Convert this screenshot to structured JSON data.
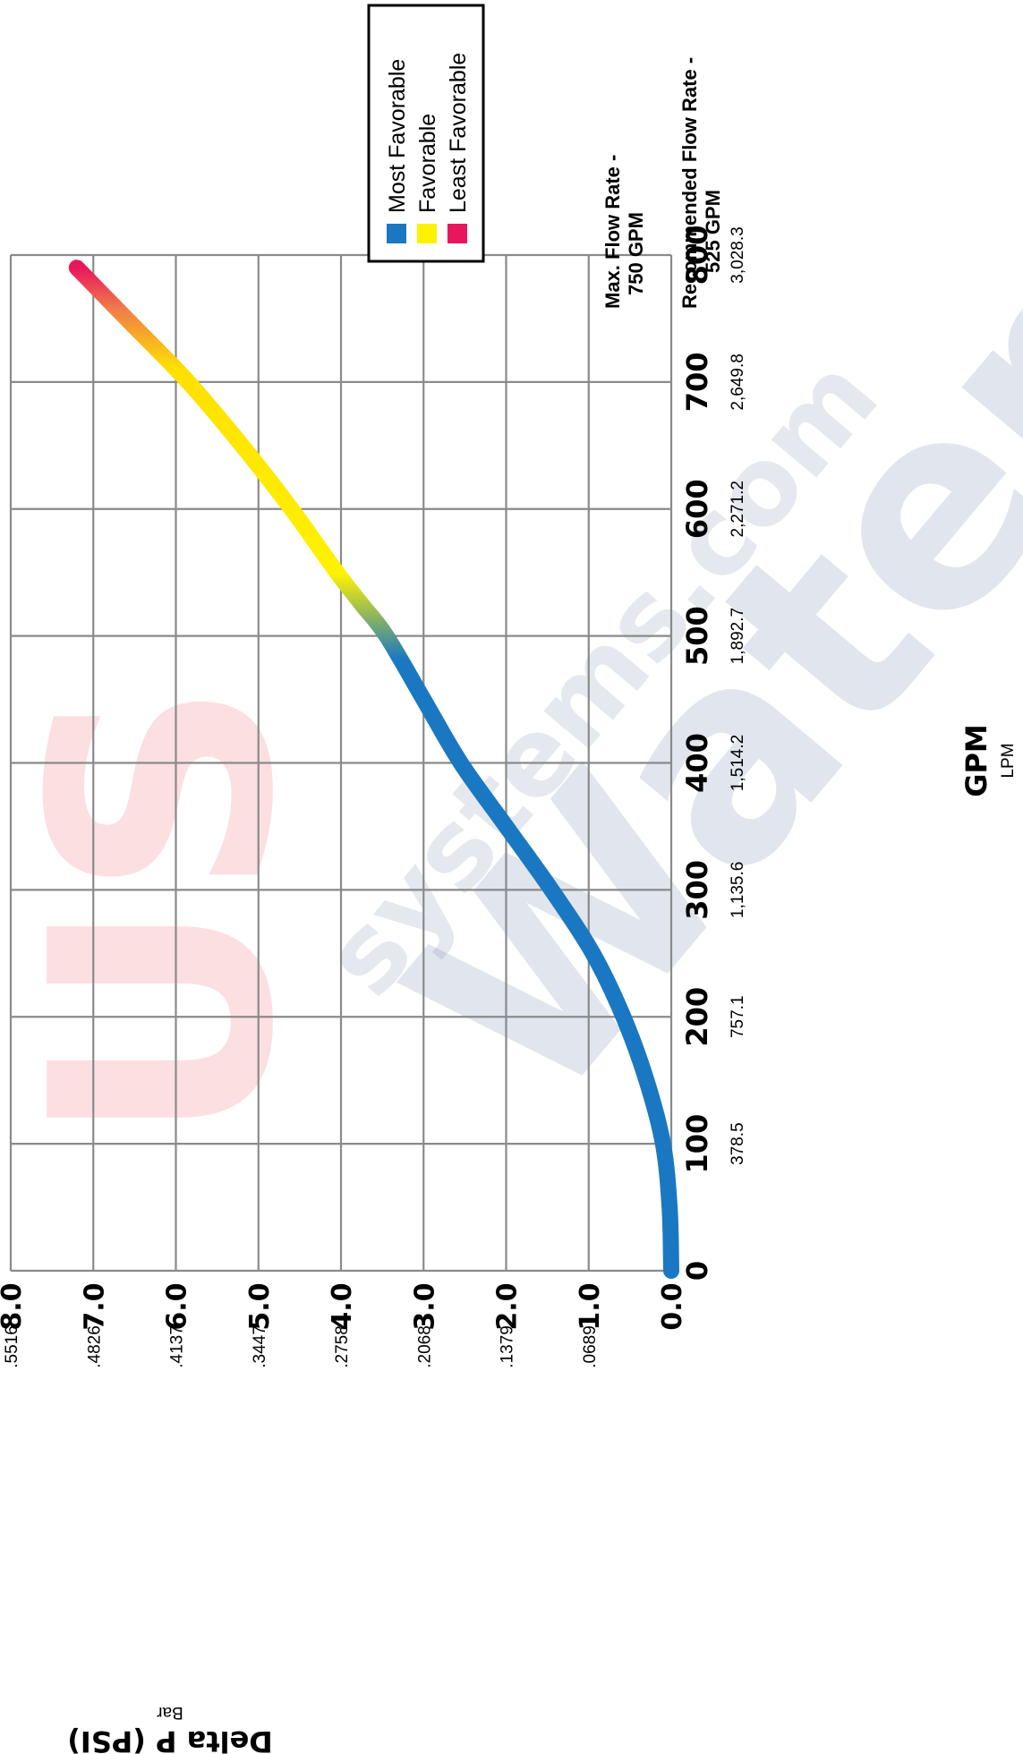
{
  "watermark": {
    "part_a": "US",
    "part_b": "Water",
    "part_c": "systems.com"
  },
  "legend": {
    "items": [
      {
        "label": "Most Favorable",
        "color": "#1a78c2"
      },
      {
        "label": "Favorable",
        "color": "#fff200"
      },
      {
        "label": "Least Favorable",
        "color": "#e8175d"
      }
    ]
  },
  "notes": {
    "max_flow_line1": "Max. Flow Rate -",
    "max_flow_line2": "750 GPM",
    "rec_flow_line1": "Recommended Flow Rate -",
    "rec_flow_line2": "525 GPM"
  },
  "chart_data": {
    "type": "line",
    "orientation": "rotated-90-ccw",
    "title": "",
    "xlabel": "GPM",
    "xlabel_secondary": "LPM",
    "ylabel": "Delta P (PSI)",
    "ylabel_secondary": "Bar",
    "xlim": [
      0,
      800
    ],
    "ylim": [
      0,
      8
    ],
    "grid": true,
    "x_ticks": [
      0,
      100,
      200,
      300,
      400,
      500,
      600,
      700,
      800
    ],
    "x_tick_labels": [
      "0",
      "100",
      "200",
      "300",
      "400",
      "500",
      "600",
      "700",
      "800"
    ],
    "x_secondary_tick_labels": [
      "",
      "378.5",
      "757.1",
      "1,135.6",
      "1,514.2",
      "1,892.7",
      "2,271.2",
      "2,649.8",
      "3,028.3"
    ],
    "y_ticks": [
      0,
      1,
      2,
      3,
      4,
      5,
      6,
      7,
      8
    ],
    "y_tick_labels": [
      "0.0",
      "1.0",
      "2.0",
      "3.0",
      "4.0",
      "5.0",
      "6.0",
      "7.0",
      "8.0"
    ],
    "y_secondary_tick_labels": [
      "",
      ".0689",
      ".1379",
      ".2068",
      ".2758",
      ".3447",
      ".4137",
      ".4826",
      ".5516"
    ],
    "series": [
      {
        "x": [
          0,
          50,
          100,
          150,
          200,
          250,
          300,
          350,
          400,
          450,
          500,
          525,
          550,
          600,
          650,
          700,
          750,
          790
        ],
        "y": [
          0.0,
          0.02,
          0.1,
          0.3,
          0.58,
          0.95,
          1.45,
          2.0,
          2.55,
          3.0,
          3.45,
          3.75,
          4.05,
          4.6,
          5.2,
          5.85,
          6.6,
          7.2
        ]
      }
    ],
    "color_bands": [
      {
        "label": "Most Favorable",
        "x_from": 0,
        "x_to": 500
      },
      {
        "label": "Favorable",
        "x_from": 550,
        "x_to": 740
      },
      {
        "label": "Least Favorable",
        "x_from": 760,
        "x_to": 790
      }
    ]
  }
}
